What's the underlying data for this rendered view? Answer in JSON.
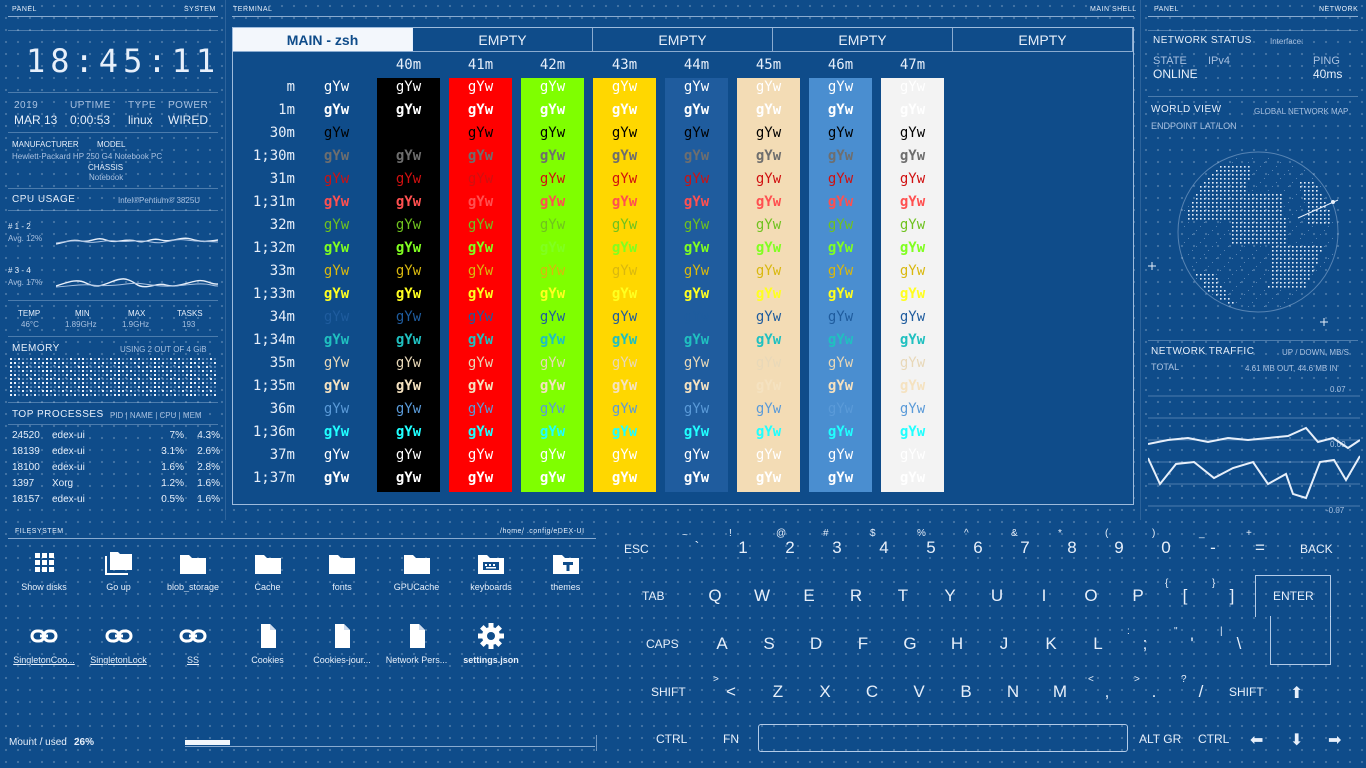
{
  "left_panel": {
    "header_left": "PANEL",
    "header_right": "SYSTEM",
    "clock": "18:45:11",
    "year": "2019",
    "date": "MAR 13",
    "uptime_label": "UPTIME",
    "uptime": "0:00:53",
    "type_label": "TYPE",
    "type": "linux",
    "power_label": "POWER",
    "power": "WIRED",
    "manufacturer_label": "MANUFACTURER",
    "model_label": "MODEL",
    "manufacturer_model": "Hewlett-Packard HP 250 G4 Notebook PC",
    "chassis_label": "CHASSIS",
    "chassis": "Notebook",
    "cpu_label": "CPU USAGE",
    "cpu_name": "Intel®Pentium® 3825U",
    "core1_label": "# 1 - 2",
    "core1_avg": "Avg. 12%",
    "core2_label": "# 3 - 4",
    "core2_avg": "Avg. 17%",
    "temp_label": "TEMP",
    "temp": "46°C",
    "min_label": "MIN",
    "min": "1.89GHz",
    "max_label": "MAX",
    "max": "1.9GHz",
    "tasks_label": "TASKS",
    "tasks": "193",
    "memory_label": "MEMORY",
    "memory_usage": "USING 2 OUT OF 4 GiB",
    "top_label": "TOP PROCESSES",
    "top_cols": "PID | NAME | CPU | MEM",
    "processes": [
      {
        "pid": "24520",
        "name": "edex-ui",
        "cpu": "7%",
        "mem": "4.3%"
      },
      {
        "pid": "18139",
        "name": "edex-ui",
        "cpu": "3.1%",
        "mem": "2.6%"
      },
      {
        "pid": "18100",
        "name": "edex-ui",
        "cpu": "1.6%",
        "mem": "2.8%"
      },
      {
        "pid": "1397",
        "name": "Xorg",
        "cpu": "1.2%",
        "mem": "1.6%"
      },
      {
        "pid": "18157",
        "name": "edex-ui",
        "cpu": "0.5%",
        "mem": "1.6%"
      }
    ]
  },
  "terminal": {
    "header_left": "TERMINAL",
    "header_right": "MAIN SHELL",
    "tabs": [
      "MAIN - zsh",
      "EMPTY",
      "EMPTY",
      "EMPTY",
      "EMPTY"
    ],
    "col_headers": [
      "40m",
      "41m",
      "42m",
      "43m",
      "44m",
      "45m",
      "46m",
      "47m"
    ],
    "bg_colors": [
      "#000000",
      "#ff0000",
      "#7fff00",
      "#ffd700",
      "#1f5c9e",
      "#f3dcb5",
      "#4a8ed0",
      "#f3f3f3"
    ],
    "sample": "gYw",
    "row_labels": [
      "m",
      "1m",
      "30m",
      "1;30m",
      "31m",
      "1;31m",
      "32m",
      "1;32m",
      "33m",
      "1;33m",
      "34m",
      "1;34m",
      "35m",
      "1;35m",
      "36m",
      "1;36m",
      "37m",
      "1;37m"
    ],
    "fg_colors": [
      "#ffffff",
      "#ffffff",
      "#000000",
      "#6e6e6e",
      "#d01010",
      "#ff5050",
      "#6fc21f",
      "#80ff20",
      "#d9b80f",
      "#ffff20",
      "#1f5c9e",
      "#20c0c0",
      "#e8d8b8",
      "#f5e2c0",
      "#5a9ad8",
      "#20ffff",
      "#ffffff",
      "#ffffff"
    ]
  },
  "right_panel": {
    "header_left": "PANEL",
    "header_right": "NETWORK",
    "net_status_label": "NETWORK STATUS",
    "interface_label": "Interface:",
    "state_label": "STATE",
    "ipv4_label": "IPv4",
    "ping_label": "PING",
    "state": "ONLINE",
    "ping": "40ms",
    "world_label": "WORLD VIEW",
    "world_sub": "GLOBAL NETWORK MAP",
    "endpoint_label": "ENDPOINT LAT/LON",
    "traffic_label": "NETWORK TRAFFIC",
    "traffic_sub": "UP / DOWN, MB/S",
    "total_label": "TOTAL",
    "total_value": "4.61 MB OUT, 44.6 MB IN",
    "axis_top": "0.07",
    "axis_mid": "0.00",
    "axis_bottom": "-0.07"
  },
  "filesystem": {
    "header_left": "FILESYSTEM",
    "path": "/home/     .config/eDEX-UI",
    "items": [
      {
        "label": "Show disks",
        "icon": "grid-icon"
      },
      {
        "label": "Go up",
        "icon": "folder-up-icon"
      },
      {
        "label": "blob_storage",
        "icon": "folder-icon"
      },
      {
        "label": "Cache",
        "icon": "folder-icon"
      },
      {
        "label": "fonts",
        "icon": "folder-icon"
      },
      {
        "label": "GPUCache",
        "icon": "folder-icon"
      },
      {
        "label": "keyboards",
        "icon": "keyboard-folder-icon"
      },
      {
        "label": "themes",
        "icon": "themes-folder-icon"
      },
      {
        "label": "SingletonCoo...",
        "icon": "link-icon"
      },
      {
        "label": "SingletonLock",
        "icon": "link-icon"
      },
      {
        "label": "SS",
        "icon": "link-icon"
      },
      {
        "label": "Cookies",
        "icon": "file-icon"
      },
      {
        "label": "Cookies-jour...",
        "icon": "file-icon"
      },
      {
        "label": "Network Pers...",
        "icon": "file-icon"
      },
      {
        "label": "settings.json",
        "icon": "gear-icon"
      }
    ],
    "mount_label": "Mount / used",
    "mount_value": "26%",
    "mount_fraction": 0.26
  },
  "keyboard": {
    "esc": "ESC",
    "back": "BACK",
    "tab": "TAB",
    "enter": "ENTER",
    "caps": "CAPS",
    "shift": "SHIFT",
    "ctrl": "CTRL",
    "fn": "FN",
    "altgr": "ALT GR",
    "row1": [
      "1",
      "2",
      "3",
      "4",
      "5",
      "6",
      "7",
      "8",
      "9",
      "0",
      "-",
      "="
    ],
    "row1_sup": [
      "~",
      "!",
      "@",
      "#",
      "$",
      "%",
      "^",
      "&",
      "*",
      "(",
      ")",
      "_",
      "+"
    ],
    "row2": [
      "Q",
      "W",
      "E",
      "R",
      "T",
      "Y",
      "U",
      "I",
      "O",
      "P",
      "[",
      "]"
    ],
    "row2_sup": [
      "{",
      "}"
    ],
    "row3": [
      "A",
      "S",
      "D",
      "F",
      "G",
      "H",
      "J",
      "K",
      "L",
      ";",
      "'",
      "\\"
    ],
    "row3_sup": [
      ":",
      "\"",
      "|"
    ],
    "row4": [
      "<",
      "Z",
      "X",
      "C",
      "V",
      "B",
      "N",
      "M",
      ",",
      ".",
      "/"
    ],
    "row4_sup": [
      ">",
      "<",
      ">",
      "?"
    ],
    "backtick": "`",
    "arrow_up": "⬆",
    "arrow_left": "⬅",
    "arrow_down": "⬇",
    "arrow_right": "➡"
  }
}
